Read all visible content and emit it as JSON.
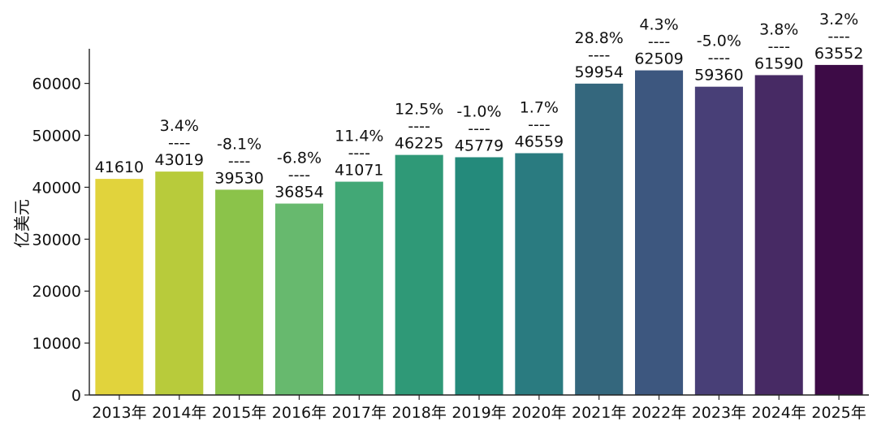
{
  "chart_data": {
    "type": "bar",
    "title": "",
    "xlabel": "",
    "ylabel": "亿美元",
    "ylim": [
      0,
      68000
    ],
    "yticks": [
      0,
      10000,
      20000,
      30000,
      40000,
      50000,
      60000
    ],
    "ytick_labels": [
      "0",
      "10000",
      "20000",
      "30000",
      "40000",
      "50000",
      "60000"
    ],
    "grid": false,
    "legend": false,
    "categories": [
      "2013年",
      "2014年",
      "2015年",
      "2016年",
      "2017年",
      "2018年",
      "2019年",
      "2020年",
      "2021年",
      "2022年",
      "2023年",
      "2024年",
      "2025年"
    ],
    "values": [
      41610,
      43019,
      39530,
      36854,
      41071,
      46225,
      45779,
      46559,
      59954,
      62509,
      59360,
      61590,
      63552
    ],
    "growth_labels": [
      "",
      "3.4%",
      "-8.1%",
      "-6.8%",
      "11.4%",
      "12.5%",
      "-1.0%",
      "1.7%",
      "28.8%",
      "4.3%",
      "-5.0%",
      "3.8%",
      "3.2%"
    ],
    "separator": "----",
    "colors": [
      "#e1d33c",
      "#b8cb3b",
      "#8bc34a",
      "#67b96e",
      "#42a876",
      "#2f9977",
      "#248a7b",
      "#2a7b80",
      "#34677d",
      "#3d577f",
      "#483f77",
      "#472a64",
      "#3d0b46"
    ]
  }
}
